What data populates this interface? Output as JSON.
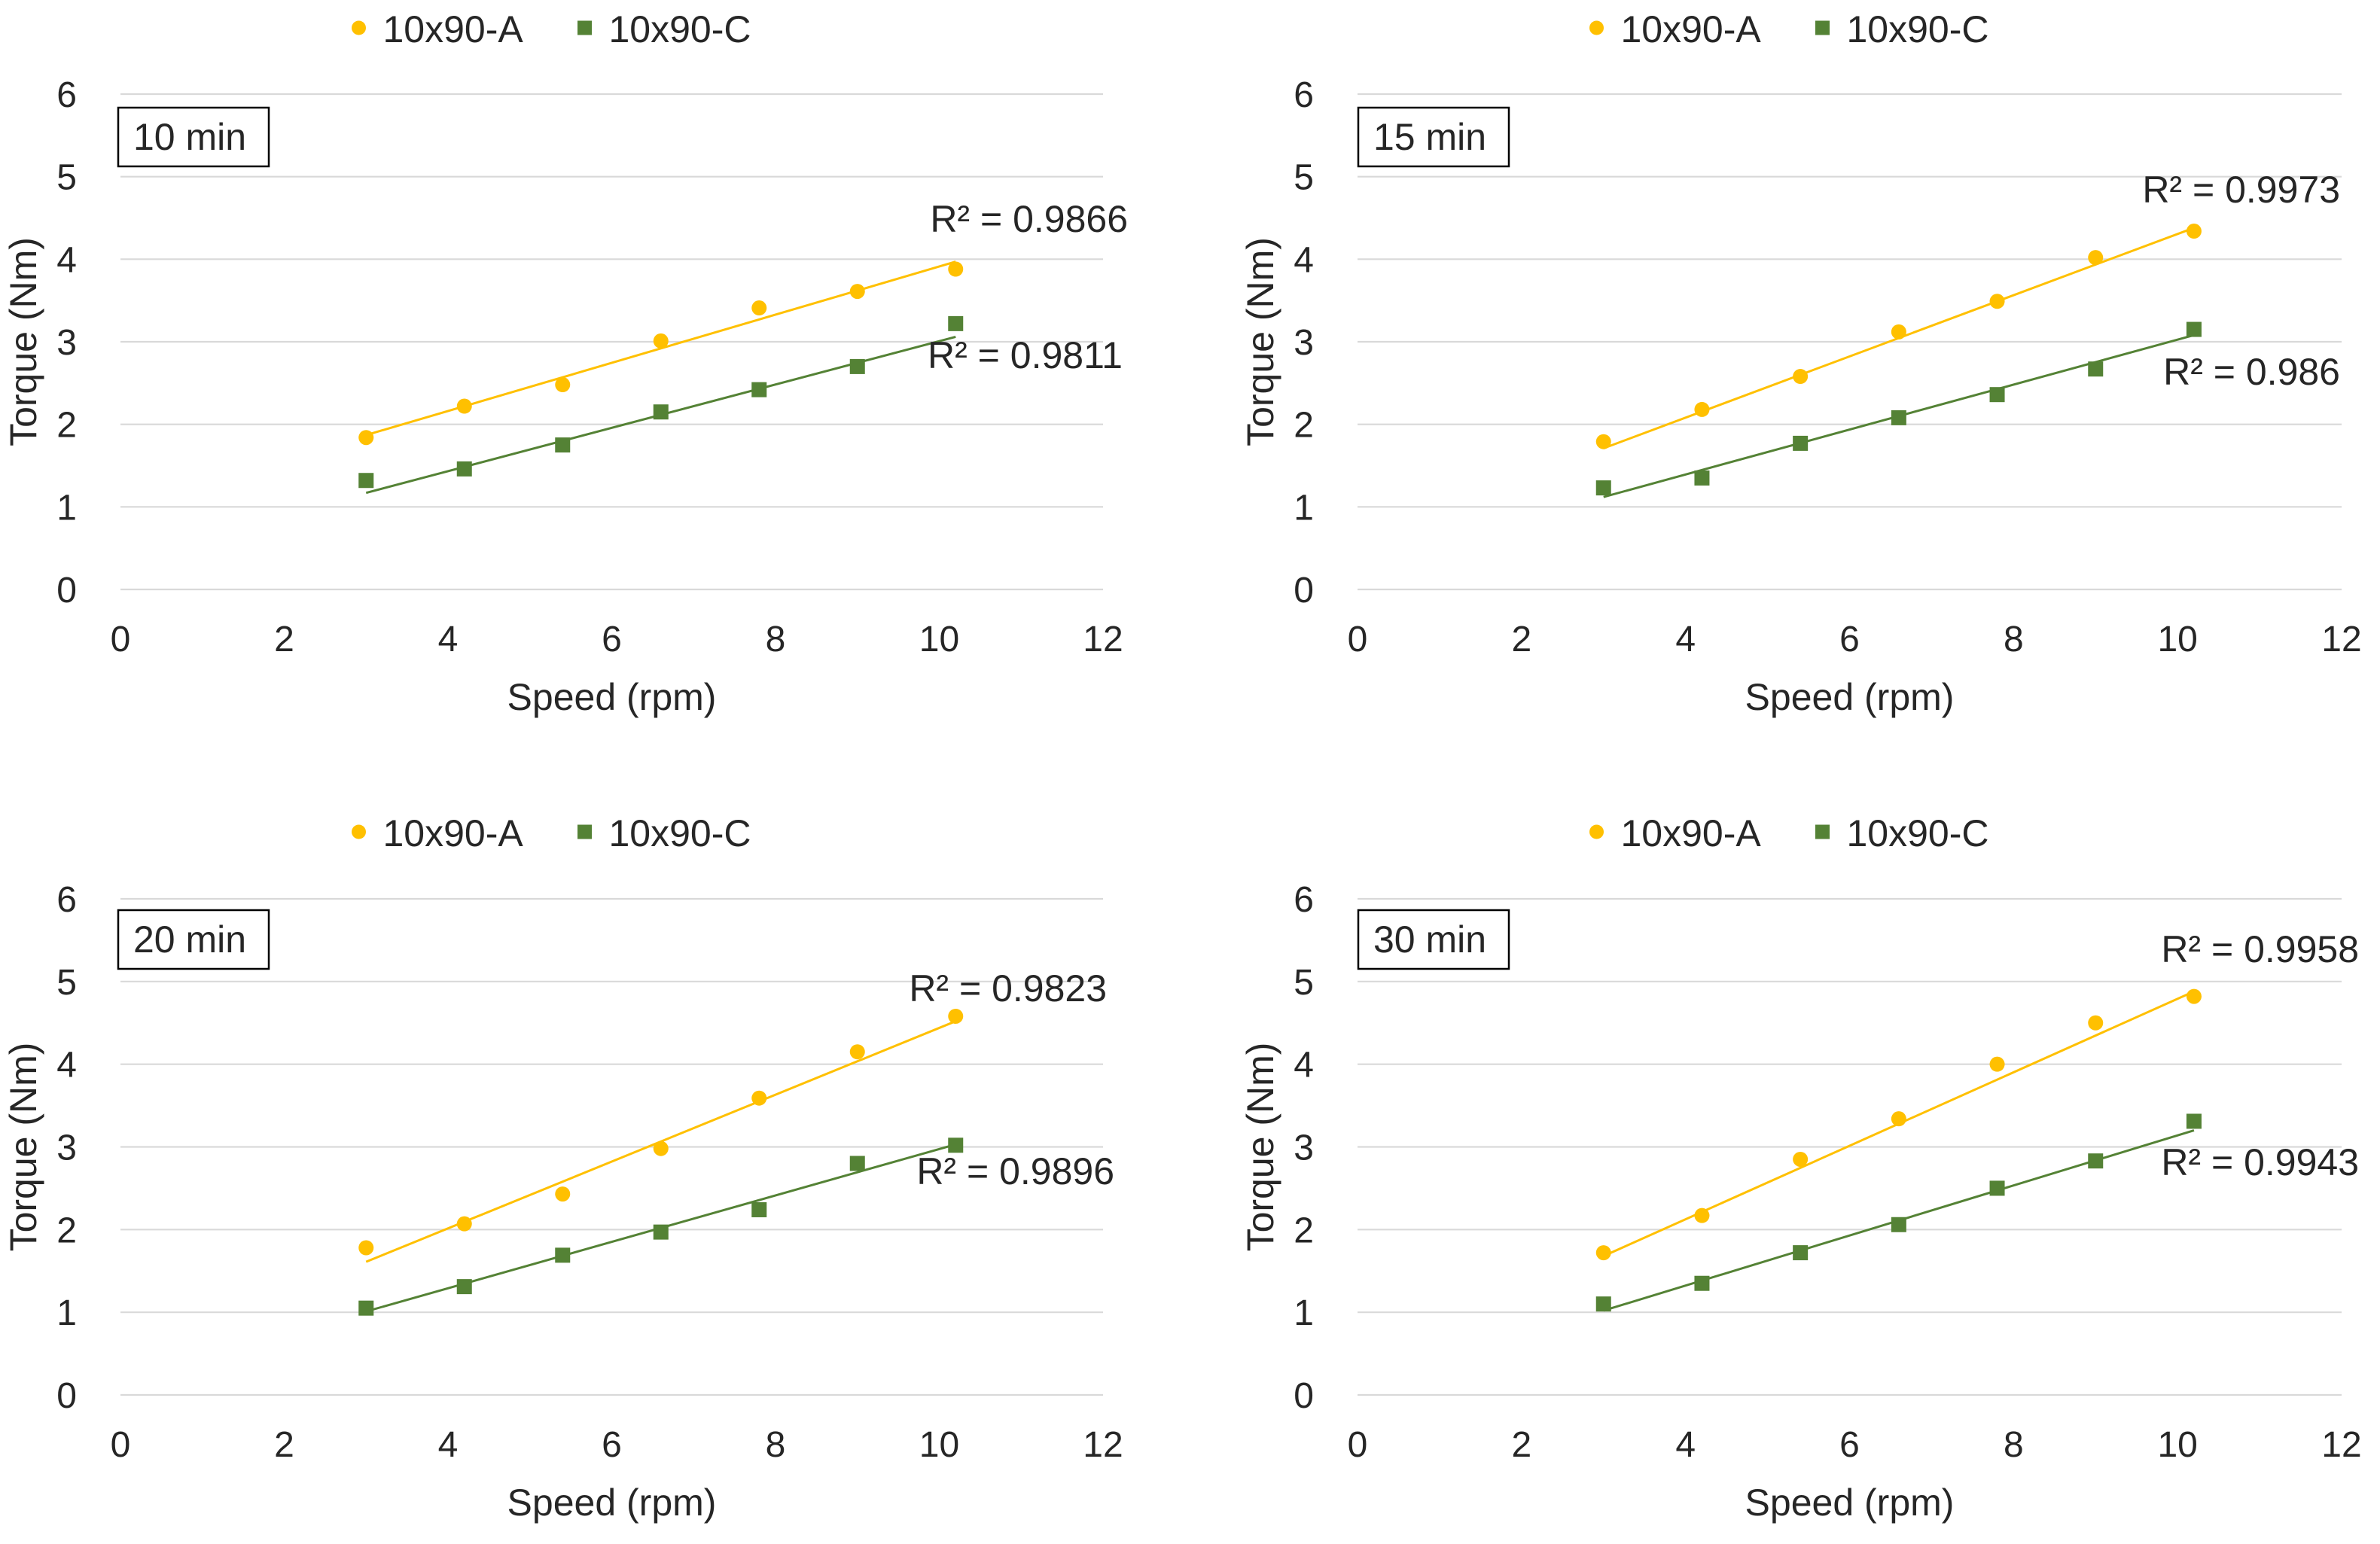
{
  "colors": {
    "series_a": "#FFC000",
    "series_c": "#548235",
    "grid": "#D9D9D9",
    "text": "#262626"
  },
  "chart_data": [
    {
      "type": "scatter",
      "panel_label": "10 min",
      "xlabel": "Speed (rpm)",
      "ylabel": "Torque (Nm)",
      "xlim": [
        0,
        12
      ],
      "ylim": [
        0,
        6
      ],
      "xticks": [
        "0",
        "2",
        "4",
        "6",
        "8",
        "10",
        "12"
      ],
      "yticks": [
        "0",
        "1",
        "2",
        "3",
        "4",
        "5",
        "6"
      ],
      "legend": [
        "10x90-A",
        "10x90-C"
      ],
      "series": [
        {
          "name": "10x90-A",
          "marker": "circle",
          "x": [
            3.0,
            4.2,
            5.4,
            6.6,
            7.8,
            9.0,
            10.2
          ],
          "y": [
            1.84,
            2.22,
            2.48,
            3.01,
            3.41,
            3.61,
            3.88
          ],
          "trendline": {
            "x": [
              3.0,
              10.2
            ],
            "y": [
              1.87,
              3.97
            ]
          },
          "r2_label": "R² = 0.9866"
        },
        {
          "name": "10x90-C",
          "marker": "square",
          "x": [
            3.0,
            4.2,
            5.4,
            6.6,
            7.8,
            9.0,
            10.2
          ],
          "y": [
            1.32,
            1.46,
            1.75,
            2.15,
            2.42,
            2.7,
            3.22
          ],
          "trendline": {
            "x": [
              3.0,
              10.2
            ],
            "y": [
              1.17,
              3.06
            ]
          },
          "r2_label": "R² = 0.9811"
        }
      ]
    },
    {
      "type": "scatter",
      "panel_label": "15 min",
      "xlabel": "Speed (rpm)",
      "ylabel": "Torque (Nm)",
      "xlim": [
        0,
        12
      ],
      "ylim": [
        0,
        6
      ],
      "xticks": [
        "0",
        "2",
        "4",
        "6",
        "8",
        "10",
        "12"
      ],
      "yticks": [
        "0",
        "1",
        "2",
        "3",
        "4",
        "5",
        "6"
      ],
      "legend": [
        "10x90-A",
        "10x90-C"
      ],
      "series": [
        {
          "name": "10x90-A",
          "marker": "circle",
          "x": [
            3.0,
            4.2,
            5.4,
            6.6,
            7.8,
            9.0,
            10.2
          ],
          "y": [
            1.79,
            2.18,
            2.58,
            3.12,
            3.49,
            4.02,
            4.34
          ],
          "trendline": {
            "x": [
              3.0,
              10.2
            ],
            "y": [
              1.71,
              4.38
            ]
          },
          "r2_label": "R² = 0.9973"
        },
        {
          "name": "10x90-C",
          "marker": "square",
          "x": [
            3.0,
            4.2,
            5.4,
            6.6,
            7.8,
            9.0,
            10.2
          ],
          "y": [
            1.23,
            1.35,
            1.77,
            2.08,
            2.36,
            2.67,
            3.15
          ],
          "trendline": {
            "x": [
              3.0,
              10.2
            ],
            "y": [
              1.12,
              3.08
            ]
          },
          "r2_label": "R² = 0.986"
        }
      ]
    },
    {
      "type": "scatter",
      "panel_label": "20 min",
      "xlabel": "Speed (rpm)",
      "ylabel": "Torque (Nm)",
      "xlim": [
        0,
        12
      ],
      "ylim": [
        0,
        6
      ],
      "xticks": [
        "0",
        "2",
        "4",
        "6",
        "8",
        "10",
        "12"
      ],
      "yticks": [
        "0",
        "1",
        "2",
        "3",
        "4",
        "5",
        "6"
      ],
      "legend": [
        "10x90-A",
        "10x90-C"
      ],
      "series": [
        {
          "name": "10x90-A",
          "marker": "circle",
          "x": [
            3.0,
            4.2,
            5.4,
            6.6,
            7.8,
            9.0,
            10.2
          ],
          "y": [
            1.78,
            2.07,
            2.43,
            2.98,
            3.59,
            4.15,
            4.58
          ],
          "trendline": {
            "x": [
              3.0,
              10.2
            ],
            "y": [
              1.61,
              4.52
            ]
          },
          "r2_label": "R² = 0.9823"
        },
        {
          "name": "10x90-C",
          "marker": "square",
          "x": [
            3.0,
            4.2,
            5.4,
            6.6,
            7.8,
            9.0,
            10.2
          ],
          "y": [
            1.05,
            1.31,
            1.69,
            1.97,
            2.24,
            2.8,
            3.02
          ],
          "trendline": {
            "x": [
              3.0,
              10.2
            ],
            "y": [
              1.01,
              3.03
            ]
          },
          "r2_label": "R² = 0.9896"
        }
      ]
    },
    {
      "type": "scatter",
      "panel_label": "30 min",
      "xlabel": "Speed (rpm)",
      "ylabel": "Torque (Nm)",
      "xlim": [
        0,
        12
      ],
      "ylim": [
        0,
        6
      ],
      "xticks": [
        "0",
        "2",
        "4",
        "6",
        "8",
        "10",
        "12"
      ],
      "yticks": [
        "0",
        "1",
        "2",
        "3",
        "4",
        "5",
        "6"
      ],
      "legend": [
        "10x90-A",
        "10x90-C"
      ],
      "series": [
        {
          "name": "10x90-A",
          "marker": "circle",
          "x": [
            3.0,
            4.2,
            5.4,
            6.6,
            7.8,
            9.0,
            10.2
          ],
          "y": [
            1.72,
            2.17,
            2.85,
            3.34,
            4.0,
            4.5,
            4.82
          ],
          "trendline": {
            "x": [
              3.0,
              10.2
            ],
            "y": [
              1.68,
              4.88
            ]
          },
          "r2_label": "R² = 0.9958"
        },
        {
          "name": "10x90-C",
          "marker": "square",
          "x": [
            3.0,
            4.2,
            5.4,
            6.6,
            7.8,
            9.0,
            10.2
          ],
          "y": [
            1.1,
            1.35,
            1.72,
            2.06,
            2.5,
            2.83,
            3.31
          ],
          "trendline": {
            "x": [
              3.0,
              10.2
            ],
            "y": [
              1.02,
              3.2
            ]
          },
          "r2_label": "R² = 0.9943"
        }
      ]
    }
  ]
}
